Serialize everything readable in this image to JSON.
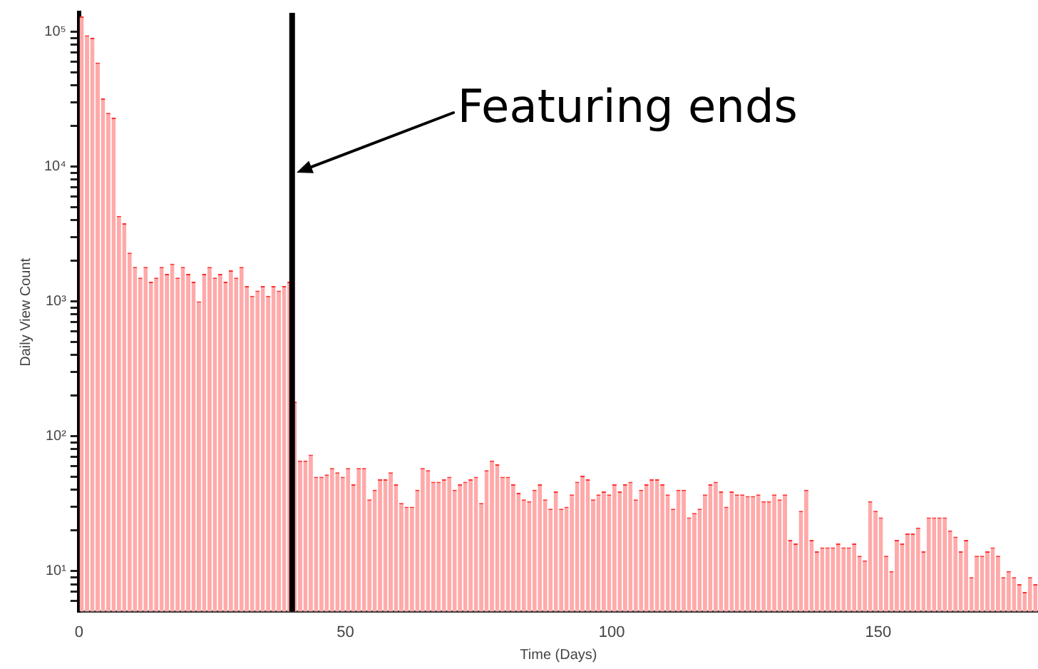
{
  "chart_data": {
    "type": "histogram",
    "xlabel": "Time (Days)",
    "ylabel": "Daily View Count",
    "log": "y",
    "color": "#ffaaaa",
    "bins": [
      0,
      1,
      2,
      3,
      4,
      5,
      6,
      7,
      8,
      9,
      10,
      11,
      12,
      13,
      14,
      15,
      16,
      17,
      18,
      19,
      20,
      21,
      22,
      23,
      24,
      25,
      26,
      27,
      28,
      29,
      30,
      31,
      32,
      33,
      34,
      35,
      36,
      37,
      38,
      39,
      40,
      41,
      42,
      43,
      44,
      45,
      46,
      47,
      48,
      49,
      50,
      51,
      52,
      53,
      54,
      55,
      56,
      57,
      58,
      59,
      60,
      61,
      62,
      63,
      64,
      65,
      66,
      67,
      68,
      69,
      70,
      71,
      72,
      73,
      74,
      75,
      76,
      77,
      78,
      79,
      80,
      81,
      82,
      83,
      84,
      85,
      86,
      87,
      88,
      89,
      90,
      91,
      92,
      93,
      94,
      95,
      96,
      97,
      98,
      99,
      100,
      101,
      102,
      103,
      104,
      105,
      106,
      107,
      108,
      109,
      110,
      111,
      112,
      113,
      114,
      115,
      116,
      117,
      118,
      119,
      120,
      121,
      122,
      123,
      124,
      125,
      126,
      127,
      128,
      129,
      130,
      131,
      132,
      133,
      134,
      135,
      136,
      137,
      138,
      139,
      140,
      141,
      142,
      143,
      144,
      145,
      146,
      147,
      148,
      149,
      150,
      151,
      152,
      153,
      154,
      155,
      156,
      157,
      158,
      159,
      160,
      161,
      162,
      163,
      164,
      165,
      166,
      167,
      168,
      169,
      170,
      171,
      172,
      173,
      174,
      175,
      176,
      177,
      178,
      179,
      180
    ],
    "values": [
      130000,
      94000,
      90000,
      59000,
      32000,
      25000,
      23000,
      4300,
      3800,
      2300,
      1800,
      1500,
      1800,
      1400,
      1500,
      1800,
      1600,
      1900,
      1500,
      1800,
      1600,
      1400,
      1000,
      1600,
      1800,
      1500,
      1600,
      1400,
      1700,
      1500,
      1800,
      1300,
      1100,
      1200,
      1300,
      1100,
      1300,
      1200,
      1300,
      1400,
      180,
      66,
      66,
      73,
      50,
      50,
      52,
      58,
      54,
      50,
      58,
      44,
      58,
      58,
      34,
      40,
      48,
      48,
      54,
      44,
      32,
      30,
      30,
      40,
      58,
      56,
      46,
      46,
      48,
      50,
      40,
      44,
      46,
      48,
      50,
      32,
      56,
      66,
      62,
      50,
      50,
      44,
      38,
      34,
      33,
      40,
      44,
      34,
      29,
      39,
      29,
      30,
      37,
      46,
      51,
      48,
      34,
      37,
      39,
      37,
      44,
      39,
      44,
      46,
      34,
      40,
      44,
      48,
      48,
      44,
      37,
      29,
      40,
      40,
      25,
      27,
      29,
      37,
      44,
      46,
      39,
      30,
      39,
      37,
      37,
      36,
      36,
      37,
      33,
      33,
      37,
      34,
      37,
      17,
      16,
      28,
      40,
      17,
      14,
      15,
      15,
      15,
      16,
      15,
      15,
      16,
      13,
      12,
      33,
      28,
      25,
      13,
      10,
      17,
      16,
      19,
      19,
      21,
      14,
      25,
      25,
      25,
      25,
      20,
      18,
      14,
      17,
      9,
      13,
      13,
      14,
      15,
      13,
      9,
      10,
      9,
      8,
      7,
      9,
      8
    ],
    "xlim": [
      0,
      180
    ],
    "xticks": [
      0,
      50,
      100,
      150
    ],
    "ylim": [
      5,
      138000
    ],
    "yticks": [
      {
        "value": 6,
        "label": null
      },
      {
        "value": 7,
        "label": null
      },
      {
        "value": 8,
        "label": null
      },
      {
        "value": 9,
        "label": null
      },
      {
        "value": 10,
        "label": "10¹"
      },
      {
        "value": 20,
        "label": null
      },
      {
        "value": 30,
        "label": null
      },
      {
        "value": 40,
        "label": null
      },
      {
        "value": 50,
        "label": null
      },
      {
        "value": 60,
        "label": null
      },
      {
        "value": 70,
        "label": null
      },
      {
        "value": 80,
        "label": null
      },
      {
        "value": 90,
        "label": null
      },
      {
        "value": 100,
        "label": "10²"
      },
      {
        "value": 200,
        "label": null
      },
      {
        "value": 300,
        "label": null
      },
      {
        "value": 400,
        "label": null
      },
      {
        "value": 500,
        "label": null
      },
      {
        "value": 600,
        "label": null
      },
      {
        "value": 700,
        "label": null
      },
      {
        "value": 800,
        "label": null
      },
      {
        "value": 900,
        "label": null
      },
      {
        "value": 1000,
        "label": "10³"
      },
      {
        "value": 2000,
        "label": null
      },
      {
        "value": 3000,
        "label": null
      },
      {
        "value": 4000,
        "label": null
      },
      {
        "value": 5000,
        "label": null
      },
      {
        "value": 6000,
        "label": null
      },
      {
        "value": 7000,
        "label": null
      },
      {
        "value": 8000,
        "label": null
      },
      {
        "value": 9000,
        "label": null
      },
      {
        "value": 10000,
        "label": "10⁴"
      },
      {
        "value": 20000,
        "label": null
      },
      {
        "value": 30000,
        "label": null
      },
      {
        "value": 40000,
        "label": null
      },
      {
        "value": 50000,
        "label": null
      },
      {
        "value": 60000,
        "label": null
      },
      {
        "value": 70000,
        "label": null
      },
      {
        "value": 80000,
        "label": null
      },
      {
        "value": 90000,
        "label": null
      },
      {
        "value": 100000,
        "label": "10⁵"
      }
    ],
    "ref_lines": [
      {
        "axis": "x",
        "value": 40,
        "color": "#000000"
      }
    ],
    "annotations": [
      {
        "text": "Featuring ends",
        "x": 40,
        "y": 9000
      }
    ]
  }
}
